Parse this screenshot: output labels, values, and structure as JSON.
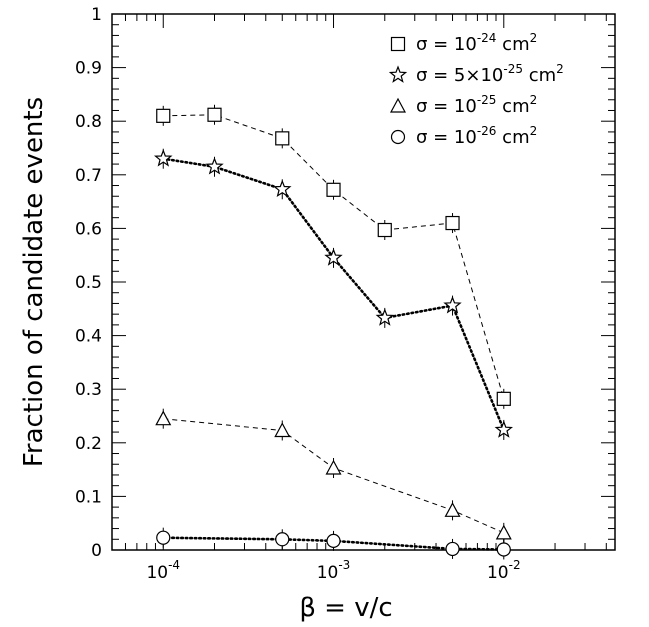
{
  "chart_data": {
    "type": "scatter",
    "title": "",
    "xlabel": "β = v/c",
    "ylabel": "Fraction of candidate events",
    "xscale": "log",
    "xlim": [
      5e-05,
      0.045
    ],
    "ylim": [
      0,
      1
    ],
    "legend_position": "top-right",
    "grid": false,
    "x_tick_labels": [
      {
        "base": "10",
        "exp": "-4",
        "value": 0.0001
      },
      {
        "base": "10",
        "exp": "-3",
        "value": 0.001
      },
      {
        "base": "10",
        "exp": "-2",
        "value": 0.01
      }
    ],
    "y_tick_labels": [
      "0",
      "0.1",
      "0.2",
      "0.3",
      "0.4",
      "0.5",
      "0.6",
      "0.7",
      "0.8",
      "0.9",
      "1"
    ],
    "series": [
      {
        "legend_prefix": "σ = 10",
        "legend_exp": "-24",
        "legend_suffix": " cm",
        "legend_unit_exp": "2",
        "marker": "square",
        "line": "dashed",
        "x": [
          0.0001,
          0.0002,
          0.0005,
          0.001,
          0.002,
          0.005,
          0.01
        ],
        "y": [
          0.81,
          0.812,
          0.768,
          0.672,
          0.597,
          0.61,
          0.282
        ]
      },
      {
        "legend_prefix": "σ = 5×10",
        "legend_exp": "-25",
        "legend_suffix": " cm",
        "legend_unit_exp": "2",
        "marker": "star",
        "line": "dotted",
        "x": [
          0.0001,
          0.0002,
          0.0005,
          0.001,
          0.002,
          0.005,
          0.01
        ],
        "y": [
          0.73,
          0.715,
          0.673,
          0.545,
          0.433,
          0.456,
          0.224
        ]
      },
      {
        "legend_prefix": "σ = 10",
        "legend_exp": "-25",
        "legend_suffix": " cm",
        "legend_unit_exp": "2",
        "marker": "triangle",
        "line": "dashed",
        "x": [
          0.0001,
          0.0005,
          0.001,
          0.005,
          0.01
        ],
        "y": [
          0.245,
          0.223,
          0.153,
          0.074,
          0.032
        ]
      },
      {
        "legend_prefix": "σ = 10",
        "legend_exp": "-26",
        "legend_suffix": " cm",
        "legend_unit_exp": "2",
        "marker": "circle",
        "line": "dotted",
        "x": [
          0.0001,
          0.0005,
          0.001,
          0.005,
          0.01
        ],
        "y": [
          0.023,
          0.02,
          0.017,
          0.002,
          0.001
        ]
      }
    ]
  }
}
